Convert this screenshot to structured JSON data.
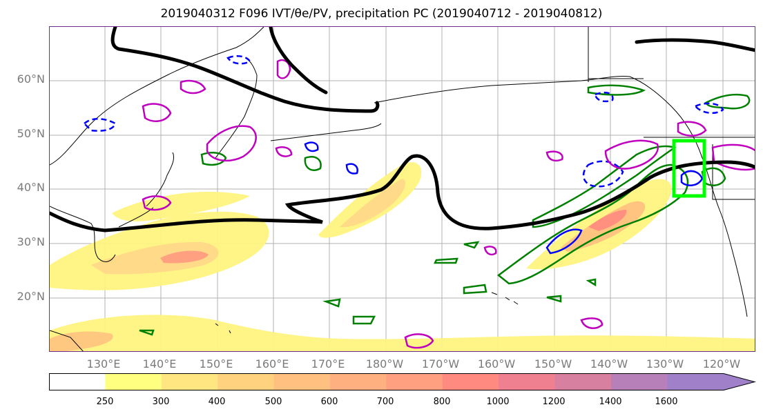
{
  "title": "2019040312 F096 IVT/θe/PV, precipitation PC (2019040712 - 2019040812)",
  "map": {
    "lat_labels": [
      "60°N",
      "50°N",
      "40°N",
      "30°N",
      "20°N"
    ],
    "lon_labels": [
      "130°E",
      "140°E",
      "150°E",
      "160°E",
      "170°E",
      "180°W",
      "170°W",
      "160°W",
      "150°W",
      "140°W",
      "130°W",
      "120°W"
    ],
    "colors": {
      "jet_line": "#000000",
      "contour_green": "#008000",
      "contour_blue": "#0000ff",
      "contour_magenta": "#bf00bf",
      "highlight_box": "#00ff00",
      "frame": "#6e2a8c"
    }
  },
  "colorbar": {
    "ticks": [
      "250",
      "300",
      "400",
      "500",
      "600",
      "700",
      "800",
      "1000",
      "1200",
      "1400",
      "1600"
    ],
    "colors": [
      "#ffffff",
      "#ffff80",
      "#ffe680",
      "#ffd280",
      "#ffc080",
      "#ffb080",
      "#ffa080",
      "#ff8a80",
      "#ef8090",
      "#d880a0",
      "#b880b8",
      "#a080c8"
    ]
  }
}
